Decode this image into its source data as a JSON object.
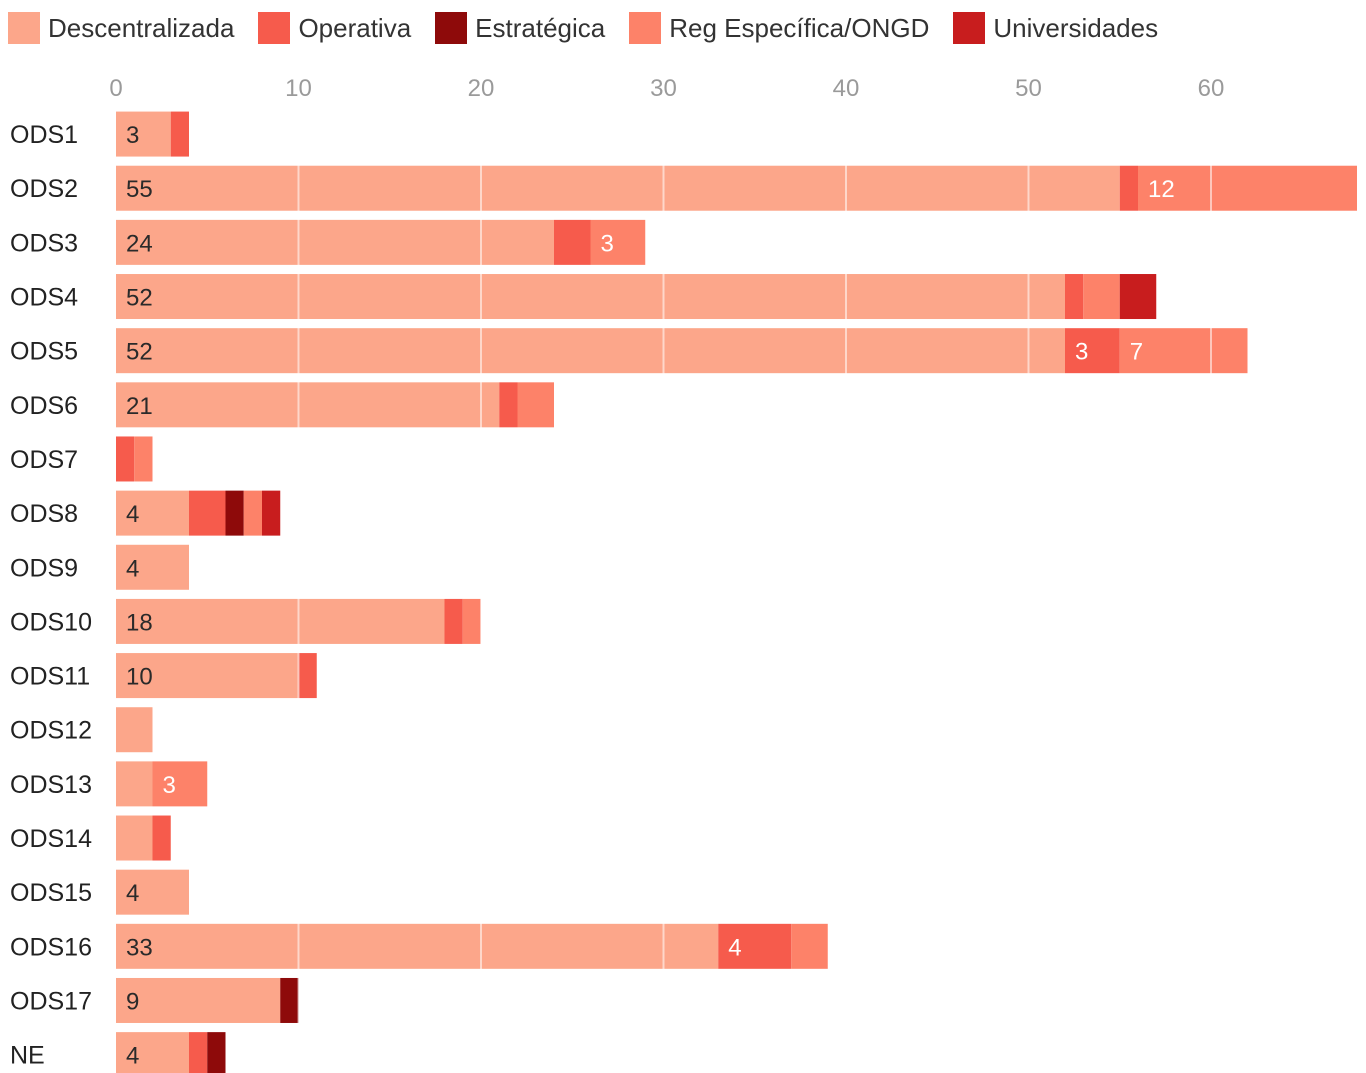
{
  "chart_data": {
    "type": "bar",
    "orientation": "horizontal",
    "stacked": true,
    "legend_position": "top",
    "grid": true,
    "xlim": [
      0,
      68
    ],
    "x_ticks": [
      "0",
      "10",
      "20",
      "30",
      "40",
      "50",
      "60"
    ],
    "categories": [
      "ODS1",
      "ODS2",
      "ODS3",
      "ODS4",
      "ODS5",
      "ODS6",
      "ODS7",
      "ODS8",
      "ODS9",
      "ODS10",
      "ODS11",
      "ODS12",
      "ODS13",
      "ODS14",
      "ODS15",
      "ODS16",
      "ODS17",
      "NE"
    ],
    "series": [
      {
        "name": "Descentralizada",
        "color": "#fca68a",
        "values": [
          3,
          55,
          24,
          52,
          52,
          21,
          0,
          4,
          4,
          18,
          10,
          2,
          2,
          2,
          4,
          33,
          9,
          4
        ]
      },
      {
        "name": "Operativa",
        "color": "#f65b4c",
        "values": [
          1,
          1,
          2,
          1,
          3,
          1,
          1,
          2,
          0,
          1,
          1,
          0,
          0,
          1,
          0,
          4,
          0,
          1
        ]
      },
      {
        "name": "Estratégica",
        "color": "#8e0a0a",
        "values": [
          0,
          0,
          0,
          0,
          0,
          0,
          0,
          1,
          0,
          0,
          0,
          0,
          0,
          0,
          0,
          0,
          1,
          1
        ]
      },
      {
        "name": "Reg Específica/ONGD",
        "color": "#fd8269",
        "values": [
          0,
          12,
          3,
          2,
          7,
          2,
          1,
          1,
          0,
          1,
          0,
          0,
          3,
          0,
          0,
          2,
          0,
          0
        ]
      },
      {
        "name": "Universidades",
        "color": "#c81d1e",
        "values": [
          0,
          0,
          0,
          2,
          0,
          0,
          0,
          1,
          0,
          0,
          0,
          0,
          0,
          0,
          0,
          0,
          0,
          0
        ]
      }
    ],
    "data_labels": [
      {
        "category": "ODS1",
        "series": "Descentralizada",
        "text": "3"
      },
      {
        "category": "ODS2",
        "series": "Descentralizada",
        "text": "55"
      },
      {
        "category": "ODS2",
        "series": "Reg Específica/ONGD",
        "text": "12"
      },
      {
        "category": "ODS3",
        "series": "Descentralizada",
        "text": "24"
      },
      {
        "category": "ODS3",
        "series": "Reg Específica/ONGD",
        "text": "3"
      },
      {
        "category": "ODS4",
        "series": "Descentralizada",
        "text": "52"
      },
      {
        "category": "ODS5",
        "series": "Descentralizada",
        "text": "52"
      },
      {
        "category": "ODS5",
        "series": "Operativa",
        "text": "3"
      },
      {
        "category": "ODS5",
        "series": "Reg Específica/ONGD",
        "text": "7"
      },
      {
        "category": "ODS6",
        "series": "Descentralizada",
        "text": "21"
      },
      {
        "category": "ODS8",
        "series": "Descentralizada",
        "text": "4"
      },
      {
        "category": "ODS9",
        "series": "Descentralizada",
        "text": "4"
      },
      {
        "category": "ODS10",
        "series": "Descentralizada",
        "text": "18"
      },
      {
        "category": "ODS11",
        "series": "Descentralizada",
        "text": "10"
      },
      {
        "category": "ODS13",
        "series": "Reg Específica/ONGD",
        "text": "3"
      },
      {
        "category": "ODS15",
        "series": "Descentralizada",
        "text": "4"
      },
      {
        "category": "ODS16",
        "series": "Descentralizada",
        "text": "33"
      },
      {
        "category": "ODS16",
        "series": "Operativa",
        "text": "4"
      },
      {
        "category": "ODS17",
        "series": "Descentralizada",
        "text": "9"
      },
      {
        "category": "NE",
        "series": "Descentralizada",
        "text": "4"
      }
    ]
  }
}
